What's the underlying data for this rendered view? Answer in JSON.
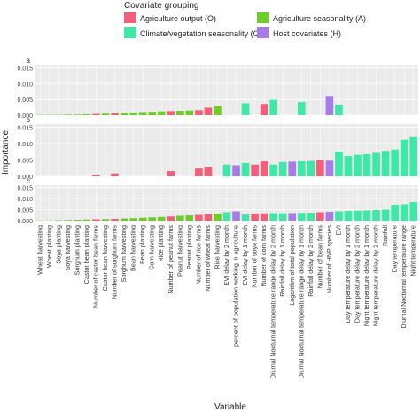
{
  "chart_data": {
    "type": "bar",
    "legend": {
      "title": "Covariate grouping",
      "position": "top",
      "items": [
        {
          "key": "O",
          "label": "Agriculture output (O)",
          "color": "#f0607a"
        },
        {
          "key": "A",
          "label": "Agriculture seasonality (A)",
          "color": "#6fcd2a"
        },
        {
          "key": "C",
          "label": "Climate/vegetation seasonality (C)",
          "color": "#3ee8a6"
        },
        {
          "key": "H",
          "label": "Host covariates (H)",
          "color": "#a97be8"
        }
      ]
    },
    "ylabel": "Importance",
    "xlabel": "Variable",
    "ylim": [
      0,
      0.016
    ],
    "yticks": [
      "0.000",
      "0.005",
      "0.010",
      "0.015"
    ],
    "grid": true,
    "categories": [
      "Wheat harvesting",
      "Wheat planting",
      "Soya planting",
      "Soya harvesting",
      "Sorghum planting",
      "Castor bean planting",
      "Number of castor bean farms",
      "Castor bean harvesting",
      "Number of sorghum farms",
      "Sorghum harvesting",
      "Bean harvesting",
      "Bean planting",
      "Corn harvesting",
      "Rice planting",
      "Number of peanut farms",
      "Peanut harvesting",
      "Peanut planting",
      "Number of rice farms",
      "Number of wheat farms",
      "Rice harvesting",
      "EVI delay by 2 month",
      "percent of population working in agriculture",
      "EVI delay by 1 month",
      "Number of soya farms",
      "Number of corn farms",
      "Diurnal Nocturnal temperature range delay by 2 month",
      "Rainfall delay by 1 month",
      "Logarithm of total population",
      "Diurnal Nocturnal temperature range delay by 1 month",
      "Rainfall delay by 2 month",
      "Number of bean farms",
      "Number of HNP species",
      "EVI",
      "Day temperature delay by 1 month",
      "Day temperature delay by 2 month",
      "Night temperature delay by 1 month",
      "Night temperature delay by 2 month",
      "Rainfall",
      "Day temperature",
      "Diurnal Nocturnal temperature range",
      "Night temperature"
    ],
    "groups": [
      "A",
      "A",
      "A",
      "A",
      "A",
      "A",
      "O",
      "A",
      "O",
      "A",
      "A",
      "A",
      "A",
      "A",
      "O",
      "A",
      "A",
      "O",
      "O",
      "A",
      "C",
      "H",
      "C",
      "O",
      "O",
      "C",
      "C",
      "H",
      "C",
      "C",
      "O",
      "H",
      "C",
      "C",
      "C",
      "C",
      "C",
      "C",
      "C",
      "C",
      "C"
    ],
    "panels": [
      {
        "label": "a",
        "values": [
          0.0001,
          0.0001,
          0.0001,
          0.0002,
          0.0002,
          0.0003,
          0.0004,
          0.0005,
          0.0006,
          0.0007,
          0.0008,
          0.001,
          0.0011,
          0.0012,
          0.0013,
          0.0014,
          0.0015,
          0.0016,
          0.0024,
          0.0028,
          0,
          0,
          0.0038,
          0,
          0.0036,
          0.0049,
          0,
          0,
          0.0042,
          0,
          0,
          0.0061,
          0.0033,
          0,
          0,
          0,
          0,
          0,
          0,
          0,
          0
        ]
      },
      {
        "label": "b",
        "values": [
          0,
          0,
          0,
          0,
          0,
          0,
          0.0005,
          0,
          0.0009,
          0,
          0,
          0,
          0,
          0,
          0.0016,
          0,
          0,
          0.0024,
          0.003,
          0,
          0.0036,
          0.0034,
          0.0041,
          0.0036,
          0.0046,
          0.0036,
          0.0044,
          0.0045,
          0.0046,
          0.0047,
          0.005,
          0.0048,
          0.0076,
          0.0062,
          0.0066,
          0.0068,
          0.0072,
          0.0078,
          0.0082,
          0.0112,
          0.012
        ]
      },
      {
        "label": "c",
        "values": [
          0.0001,
          0.0001,
          0.0002,
          0.0003,
          0.0004,
          0.0005,
          0.0006,
          0.0007,
          0.0008,
          0.001,
          0.0011,
          0.0013,
          0.0015,
          0.0017,
          0.0019,
          0.0022,
          0.0024,
          0.0026,
          0.0029,
          0.0032,
          0.0038,
          0.0042,
          0.0028,
          0.0032,
          0.0033,
          0.0034,
          0.0033,
          0.0034,
          0.0035,
          0.0036,
          0.0038,
          0.004,
          0.0042,
          0.0044,
          0.0045,
          0.0046,
          0.0048,
          0.005,
          0.0072,
          0.0074,
          0.0084
        ]
      }
    ]
  }
}
